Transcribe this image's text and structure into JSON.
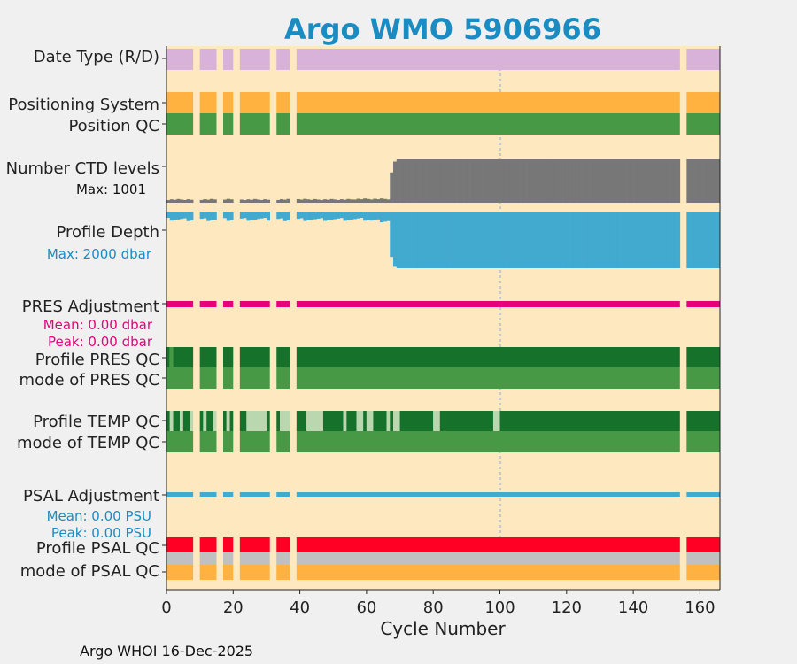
{
  "chart_data": {
    "type": "bar",
    "title": "Argo WMO 5906966",
    "xlabel": "Cycle Number",
    "xlim": [
      0,
      166
    ],
    "x_ticks": [
      "0",
      "20",
      "40",
      "60",
      "80",
      "100",
      "120",
      "140",
      "160"
    ],
    "x_tick_values": [
      0,
      20,
      40,
      60,
      80,
      100,
      120,
      140,
      160
    ],
    "reference_line_cycle": 100,
    "missing_cycles": [
      8,
      9,
      15,
      16,
      20,
      21,
      31,
      32,
      37,
      38,
      154,
      155
    ],
    "rows": [
      {
        "label": "Date Type (R/D)",
        "color": "#d8b2d8"
      },
      {
        "label": "Positioning System",
        "color": "#ffb240"
      },
      {
        "label": "Position QC",
        "color": "#479946"
      },
      {
        "label": "Number CTD levels",
        "sublabel": "Max: 1001",
        "color": "#777777"
      },
      {
        "label": "Profile Depth",
        "sublabel": "Max: 2000 dbar",
        "color": "#42a9cf"
      },
      {
        "label": "PRES Adjustment",
        "sublabel": "Mean: 0.00 dbar",
        "sublabel2": "Peak: 0.00 dbar",
        "color": "#e6007a"
      },
      {
        "label": "Profile PRES QC",
        "color": "#16712a"
      },
      {
        "label": "mode of PRES QC",
        "color": "#479946"
      },
      {
        "label": "Profile TEMP QC",
        "color": "#16712a",
        "light_color": "#b9d8b0"
      },
      {
        "label": "mode of TEMP QC",
        "color": "#479946"
      },
      {
        "label": "PSAL Adjustment",
        "sublabel": "Mean: 0.00 PSU",
        "sublabel2": "Peak: 0.00 PSU",
        "color": "#42a9cf"
      },
      {
        "label": "Profile PSAL QC",
        "color": "#ff0024"
      },
      {
        "label": "mode of PSAL QC",
        "color": "#ffb240",
        "band_color": "#c0c0c0"
      }
    ],
    "ctd_levels_max": 1001,
    "ctd_levels_early_range": [
      60,
      90
    ],
    "ctd_levels_late": 1001,
    "profile_depth_max": 2000,
    "profile_depth_early_range": [
      220,
      340
    ],
    "profile_depth_late": 2000,
    "pres_adjustment_mean": 0.0,
    "psal_adjustment_mean": 0.0,
    "temp_qc_light_cycles": [
      1,
      4,
      7,
      11,
      14,
      18,
      24,
      25,
      26,
      27,
      28,
      29,
      34,
      35,
      36,
      42,
      43,
      44,
      45,
      46,
      53,
      57,
      58,
      60,
      61,
      66,
      68,
      69,
      80,
      81,
      98,
      99
    ]
  },
  "footer": {
    "credit": "Argo WHOI 16-Dec-2025"
  }
}
